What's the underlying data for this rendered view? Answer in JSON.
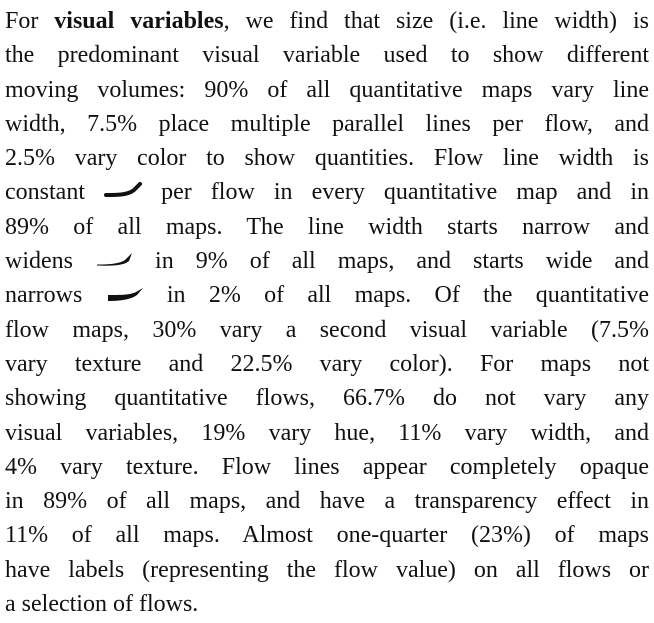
{
  "paragraph": {
    "lines": [
      [
        "For",
        "visual variables",
        ", we find that size (i.e. line width) is"
      ],
      [
        "the predominant visual variable used to show different"
      ],
      [
        "moving volumes: 90% of all quantitative maps vary line"
      ],
      [
        "width, 7.5% place multiple parallel lines per flow, and"
      ],
      [
        "2.5% vary color to show quantities. Flow line width is"
      ],
      [
        "constant",
        "per flow in every quantitative map and in"
      ],
      [
        "89% of all maps. The line width starts narrow and"
      ],
      [
        "widens",
        "in 9% of all maps, and starts wide and"
      ],
      [
        "narrows",
        "in 2% of all maps. Of the quantitative"
      ],
      [
        "flow maps, 30% vary a second visual variable (7.5%"
      ],
      [
        "vary texture and 22.5% vary color). For maps not"
      ],
      [
        "showing quantitative flows, 66.7% do not vary any"
      ],
      [
        "visual variables, 19% vary hue, 11% vary width, and"
      ],
      [
        "4% vary texture. Flow lines appear completely opaque"
      ],
      [
        "in 89% of all maps, and have a transparency effect in"
      ],
      [
        "11% of all maps. Almost one-quarter (23%) of maps"
      ],
      [
        "have labels (representing the flow value) on all flows or"
      ],
      [
        "a selection of flows."
      ]
    ]
  }
}
